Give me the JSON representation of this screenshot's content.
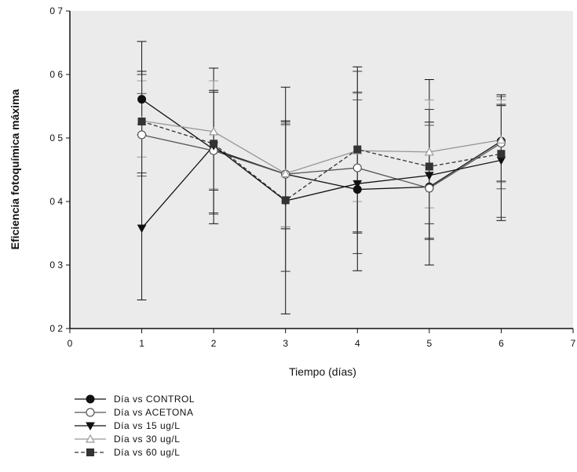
{
  "chart_data": {
    "type": "line",
    "xlabel": "Tiempo (días)",
    "ylabel": "Eficiencia fotoquímica máxima",
    "xlim": [
      0,
      7
    ],
    "ylim": [
      0.2,
      0.7
    ],
    "x_ticks": [
      "0",
      "1",
      "2",
      "3",
      "4",
      "5",
      "6",
      "7"
    ],
    "y_ticks": [
      "0 2",
      "0 3",
      "0 4",
      "0 5",
      "0 6",
      "0 7"
    ],
    "grid": false,
    "legend_position": "bottom-left",
    "background": "#ebebeb",
    "x": [
      1,
      2,
      3,
      4,
      5,
      6
    ],
    "series": [
      {
        "name": "Día vs CONTROL",
        "marker": "filled-circle",
        "color": "#111111",
        "line_style": "solid",
        "values": [
          0.561,
          0.482,
          0.443,
          0.419,
          0.423,
          0.495
        ],
        "err_low": [
          0.505,
          0.418,
          0.357,
          0.352,
          0.342,
          0.432
        ],
        "err_high": [
          0.605,
          0.572,
          0.527,
          0.572,
          0.525,
          0.551
        ]
      },
      {
        "name": "Día vs ACETONA",
        "marker": "open-circle",
        "color": "#555555",
        "line_style": "solid",
        "values": [
          0.505,
          0.48,
          0.443,
          0.453,
          0.421,
          0.492
        ],
        "err_low": [
          0.44,
          0.38,
          0.36,
          0.35,
          0.34,
          0.42
        ],
        "err_high": [
          0.57,
          0.575,
          0.525,
          0.56,
          0.52,
          0.565
        ]
      },
      {
        "name": "Día vs 15 ug/L",
        "marker": "filled-triangle-down",
        "color": "#111111",
        "line_style": "solid",
        "values": [
          0.358,
          0.488,
          0.401,
          0.428,
          0.441,
          0.465
        ],
        "err_low": [
          0.245,
          0.365,
          0.223,
          0.291,
          0.3,
          0.37
        ],
        "err_high": [
          0.652,
          0.61,
          0.58,
          0.612,
          0.592,
          0.568
        ]
      },
      {
        "name": "Día vs 30 ug/L",
        "marker": "open-triangle-up",
        "color": "#999999",
        "line_style": "solid",
        "values": [
          0.527,
          0.51,
          0.444,
          0.48,
          0.478,
          0.497
        ],
        "err_low": [
          0.47,
          0.42,
          0.36,
          0.4,
          0.39,
          0.43
        ],
        "err_high": [
          0.59,
          0.59,
          0.52,
          0.57,
          0.56,
          0.56
        ]
      },
      {
        "name": "Día vs 60 ug/L",
        "marker": "filled-square",
        "color": "#333333",
        "line_style": "dashed",
        "values": [
          0.526,
          0.491,
          0.402,
          0.482,
          0.455,
          0.475
        ],
        "err_low": [
          0.445,
          0.382,
          0.29,
          0.318,
          0.365,
          0.375
        ],
        "err_high": [
          0.6,
          0.575,
          0.522,
          0.605,
          0.545,
          0.553
        ]
      }
    ]
  }
}
